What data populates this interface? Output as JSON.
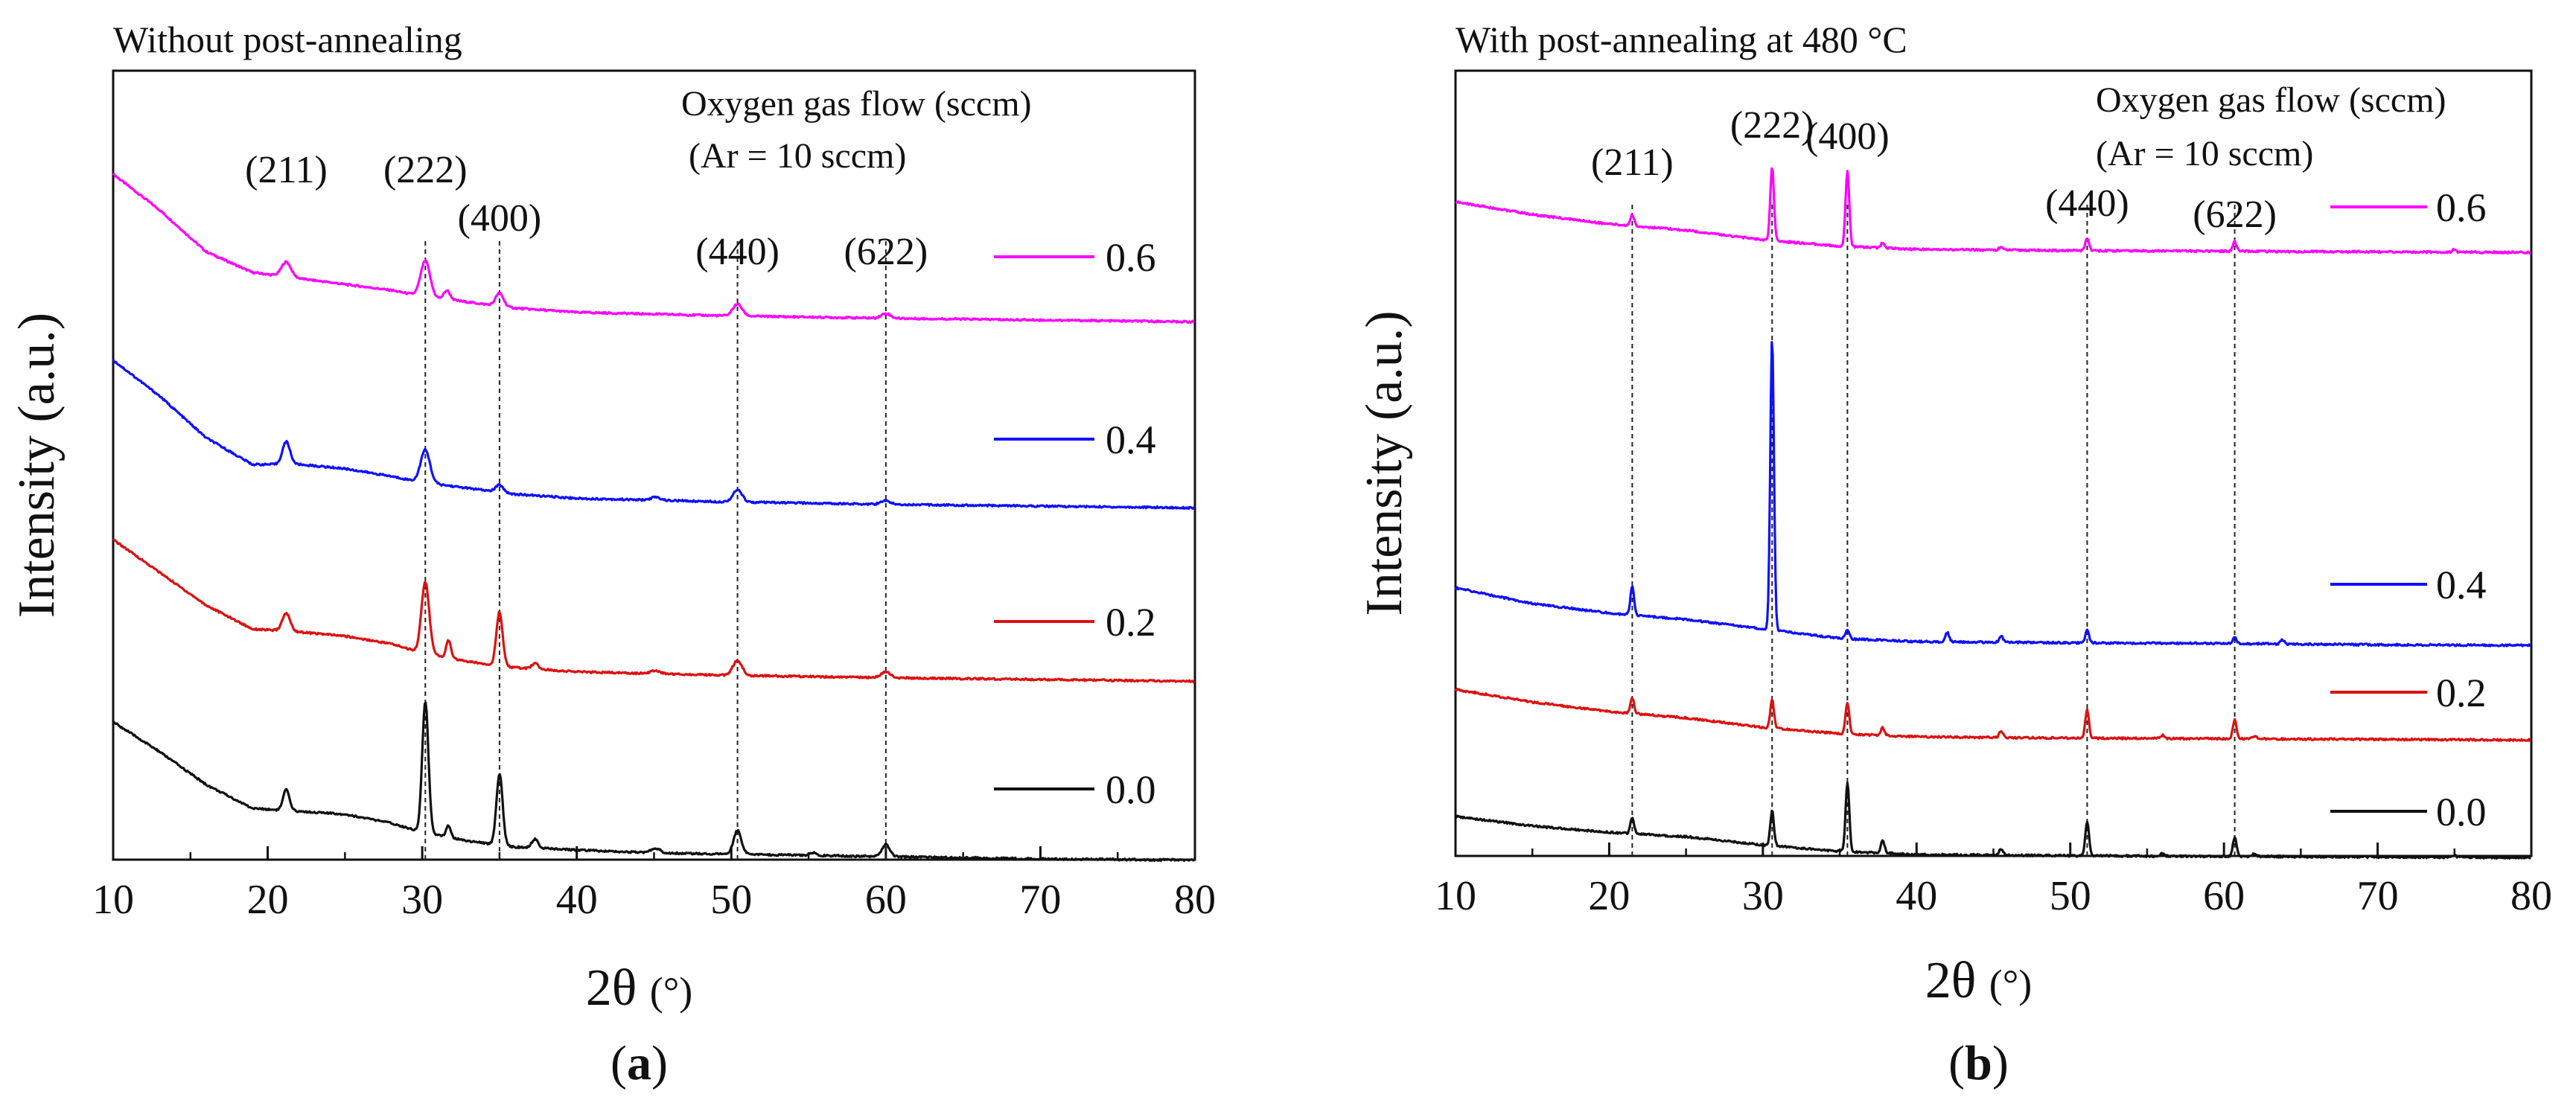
{
  "chart_data": [
    {
      "type": "line",
      "title": "Without post-annealing",
      "xlabel_main": "2θ",
      "xlabel_unit": "(°)",
      "ylabel": "Intensity (a.u.)",
      "panel_label": {
        "open": "(",
        "letter": "a",
        "close": ")"
      },
      "xlim": [
        10,
        80
      ],
      "xticks": [
        10,
        20,
        30,
        40,
        50,
        60,
        70,
        80
      ],
      "ylim": [
        0,
        10
      ],
      "legend_title": [
        "Oxygen gas flow (sccm)",
        "(Ar = 10 sccm)"
      ],
      "legend_position": "right",
      "peaks": [
        {
          "label": "(211)",
          "x": 21.2
        },
        {
          "label": "(222)",
          "x": 30.2
        },
        {
          "label": "(400)",
          "x": 35.0
        },
        {
          "label": "(440)",
          "x": 50.4
        },
        {
          "label": "(622)",
          "x": 60.0
        }
      ],
      "dashed_lines_at": [
        30.2,
        35.0,
        50.4,
        60.0
      ],
      "series": [
        {
          "name": "0.6",
          "color": "#ff00ff",
          "baseline": 6.3,
          "background": [
            [
              10,
              2.2
            ],
            [
              13,
              1.6
            ],
            [
              16,
              0.9
            ],
            [
              19,
              0.55
            ],
            [
              22,
              0.45
            ],
            [
              25,
              0.35
            ],
            [
              28,
              0.25
            ],
            [
              30,
              0.15
            ],
            [
              33,
              0.05
            ],
            [
              36,
              -0.05
            ],
            [
              40,
              -0.12
            ],
            [
              45,
              -0.15
            ],
            [
              50,
              -0.18
            ],
            [
              60,
              -0.22
            ],
            [
              70,
              -0.25
            ],
            [
              80,
              -0.28
            ]
          ],
          "peaks": [
            [
              21.2,
              0.25,
              0.3
            ],
            [
              30.2,
              0.6,
              0.3
            ],
            [
              31.6,
              0.15,
              0.2
            ],
            [
              35.0,
              0.22,
              0.25
            ],
            [
              50.4,
              0.2,
              0.3
            ],
            [
              60.0,
              0.08,
              0.3
            ]
          ]
        },
        {
          "name": "0.4",
          "color": "#1010ff",
          "baseline": 3.9,
          "background": [
            [
              10,
              2.2
            ],
            [
              13,
              1.6
            ],
            [
              16,
              0.9
            ],
            [
              19,
              0.45
            ],
            [
              22,
              0.45
            ],
            [
              25,
              0.38
            ],
            [
              28,
              0.25
            ],
            [
              30,
              0.15
            ],
            [
              33,
              0.05
            ],
            [
              36,
              -0.05
            ],
            [
              40,
              -0.12
            ],
            [
              45,
              -0.15
            ],
            [
              50,
              -0.18
            ],
            [
              60,
              -0.22
            ],
            [
              70,
              -0.25
            ],
            [
              80,
              -0.28
            ]
          ],
          "peaks": [
            [
              21.2,
              0.38,
              0.25
            ],
            [
              30.2,
              0.55,
              0.3
            ],
            [
              35.0,
              0.12,
              0.25
            ],
            [
              45.1,
              0.05,
              0.3
            ],
            [
              50.4,
              0.2,
              0.3
            ],
            [
              60.0,
              0.06,
              0.3
            ]
          ]
        },
        {
          "name": "0.2",
          "color": "#dd1111",
          "baseline": 1.75,
          "background": [
            [
              10,
              2.1
            ],
            [
              13,
              1.55
            ],
            [
              16,
              1.0
            ],
            [
              19,
              0.6
            ],
            [
              22,
              0.55
            ],
            [
              25,
              0.48
            ],
            [
              28,
              0.35
            ],
            [
              30,
              0.2
            ],
            [
              33,
              0.05
            ],
            [
              36,
              -0.05
            ],
            [
              40,
              -0.12
            ],
            [
              45,
              -0.15
            ],
            [
              50,
              -0.18
            ],
            [
              60,
              -0.22
            ],
            [
              70,
              -0.25
            ],
            [
              80,
              -0.28
            ]
          ],
          "peaks": [
            [
              21.2,
              0.3,
              0.25
            ],
            [
              30.2,
              1.2,
              0.25
            ],
            [
              31.7,
              0.3,
              0.15
            ],
            [
              35.0,
              0.9,
              0.2
            ],
            [
              37.3,
              0.1,
              0.2
            ],
            [
              45.1,
              0.05,
              0.3
            ],
            [
              50.4,
              0.25,
              0.3
            ],
            [
              60.0,
              0.1,
              0.3
            ]
          ]
        },
        {
          "name": "0.0",
          "color": "#111111",
          "baseline": 0.0,
          "background": [
            [
              10,
              2.1
            ],
            [
              13,
              1.6
            ],
            [
              16,
              1.05
            ],
            [
              19,
              0.65
            ],
            [
              22,
              0.6
            ],
            [
              25,
              0.55
            ],
            [
              28,
              0.4
            ],
            [
              30,
              0.25
            ],
            [
              33,
              0.1
            ],
            [
              36,
              0.0
            ],
            [
              40,
              -0.05
            ],
            [
              45,
              -0.1
            ],
            [
              50,
              -0.12
            ],
            [
              60,
              -0.16
            ],
            [
              70,
              -0.2
            ],
            [
              80,
              -0.22
            ]
          ],
          "peaks": [
            [
              21.2,
              0.35,
              0.2
            ],
            [
              30.2,
              2.2,
              0.2
            ],
            [
              31.7,
              0.2,
              0.15
            ],
            [
              35.0,
              1.2,
              0.2
            ],
            [
              37.3,
              0.15,
              0.2
            ],
            [
              45.1,
              0.08,
              0.3
            ],
            [
              50.4,
              0.4,
              0.25
            ],
            [
              55.3,
              0.05,
              0.2
            ],
            [
              60.0,
              0.2,
              0.25
            ]
          ]
        }
      ]
    },
    {
      "type": "line",
      "title": "With post-annealing at 480 °C",
      "xlabel_main": "2θ",
      "xlabel_unit": "(°)",
      "ylabel": "Intensity (a.u.)",
      "panel_label": {
        "open": "(",
        "letter": "b",
        "close": ")"
      },
      "xlim": [
        10,
        80
      ],
      "xticks": [
        10,
        20,
        30,
        40,
        50,
        60,
        70,
        80
      ],
      "ylim": [
        0,
        10
      ],
      "legend_title": [
        "Oxygen gas flow (sccm)",
        "(Ar = 10 sccm)"
      ],
      "legend_position": "right",
      "peaks": [
        {
          "label": "(211)",
          "x": 21.5
        },
        {
          "label": "(222)",
          "x": 30.6
        },
        {
          "label": "(400)",
          "x": 35.5
        },
        {
          "label": "(440)",
          "x": 51.1
        },
        {
          "label": "(622)",
          "x": 60.7
        }
      ],
      "dashed_lines_at": [
        21.5,
        30.6,
        35.5,
        51.1,
        60.7
      ],
      "series": [
        {
          "name": "0.6",
          "color": "#ff00ff",
          "baseline": 8.85,
          "background": [
            [
              10,
              0.75
            ],
            [
              15,
              0.55
            ],
            [
              20,
              0.4
            ],
            [
              25,
              0.3
            ],
            [
              30,
              0.15
            ],
            [
              35,
              0.05
            ],
            [
              40,
              0.0
            ],
            [
              50,
              -0.02
            ],
            [
              60,
              -0.03
            ],
            [
              70,
              -0.04
            ],
            [
              80,
              -0.05
            ]
          ],
          "peaks": [
            [
              21.5,
              0.18,
              0.12
            ],
            [
              30.6,
              1.15,
              0.12
            ],
            [
              35.5,
              1.2,
              0.12
            ],
            [
              37.8,
              0.08,
              0.12
            ],
            [
              45.5,
              0.05,
              0.12
            ],
            [
              51.1,
              0.2,
              0.12
            ],
            [
              60.7,
              0.15,
              0.12
            ],
            [
              75,
              0.05,
              0.1
            ]
          ]
        },
        {
          "name": "0.4",
          "color": "#1010ff",
          "baseline": 3.05,
          "background": [
            [
              10,
              0.85
            ],
            [
              15,
              0.6
            ],
            [
              20,
              0.45
            ],
            [
              25,
              0.35
            ],
            [
              30,
              0.2
            ],
            [
              35,
              0.05
            ],
            [
              40,
              0.0
            ],
            [
              50,
              -0.02
            ],
            [
              60,
              -0.03
            ],
            [
              70,
              -0.05
            ],
            [
              80,
              -0.06
            ]
          ],
          "peaks": [
            [
              21.5,
              0.45,
              0.12
            ],
            [
              30.6,
              4.6,
              0.12
            ],
            [
              35.5,
              0.15,
              0.12
            ],
            [
              42,
              0.15,
              0.12
            ],
            [
              45.5,
              0.1,
              0.12
            ],
            [
              51.1,
              0.2,
              0.12
            ],
            [
              60.7,
              0.1,
              0.12
            ],
            [
              63.8,
              0.07,
              0.12
            ]
          ]
        },
        {
          "name": "0.2",
          "color": "#dd1111",
          "baseline": 1.6,
          "background": [
            [
              10,
              0.75
            ],
            [
              15,
              0.55
            ],
            [
              20,
              0.4
            ],
            [
              25,
              0.3
            ],
            [
              30,
              0.15
            ],
            [
              35,
              0.05
            ],
            [
              40,
              0.0
            ],
            [
              50,
              -0.02
            ],
            [
              60,
              -0.03
            ],
            [
              70,
              -0.04
            ],
            [
              80,
              -0.05
            ]
          ],
          "peaks": [
            [
              21.5,
              0.25,
              0.12
            ],
            [
              30.6,
              0.45,
              0.12
            ],
            [
              35.5,
              0.5,
              0.12
            ],
            [
              37.8,
              0.12,
              0.12
            ],
            [
              45.5,
              0.1,
              0.12
            ],
            [
              51.1,
              0.45,
              0.12
            ],
            [
              56,
              0.05,
              0.12
            ],
            [
              60.7,
              0.3,
              0.12
            ],
            [
              62,
              0.05,
              0.12
            ]
          ]
        },
        {
          "name": "0.0",
          "color": "#111111",
          "baseline": 0.0,
          "background": [
            [
              10,
              0.6
            ],
            [
              15,
              0.45
            ],
            [
              20,
              0.35
            ],
            [
              25,
              0.28
            ],
            [
              30,
              0.15
            ],
            [
              35,
              0.05
            ],
            [
              40,
              0.0
            ],
            [
              50,
              -0.02
            ],
            [
              60,
              -0.03
            ],
            [
              70,
              -0.04
            ],
            [
              80,
              -0.05
            ]
          ],
          "peaks": [
            [
              21.5,
              0.25,
              0.12
            ],
            [
              30.6,
              0.55,
              0.12
            ],
            [
              35.5,
              1.1,
              0.12
            ],
            [
              37.8,
              0.2,
              0.12
            ],
            [
              45.5,
              0.1,
              0.12
            ],
            [
              51.1,
              0.55,
              0.12
            ],
            [
              56,
              0.05,
              0.12
            ],
            [
              60.7,
              0.3,
              0.12
            ],
            [
              62,
              0.05,
              0.12
            ],
            [
              75,
              0.04,
              0.1
            ]
          ]
        }
      ]
    }
  ]
}
